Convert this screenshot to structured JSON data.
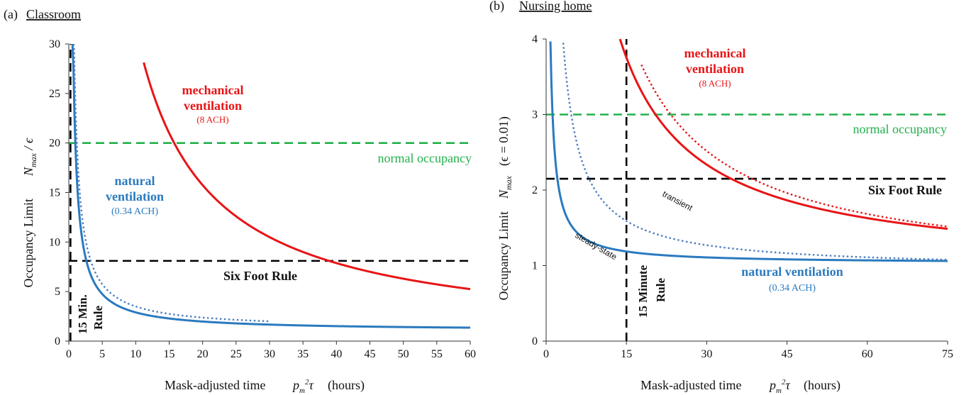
{
  "colors": {
    "mechanical": "#e81416",
    "natural": "#2a7abf",
    "natural_dotted": "#4f7fc0",
    "normal": "#22b14c",
    "rule": "#000000"
  },
  "chart_data": [
    {
      "type": "line",
      "panel_letter": "(a)",
      "title": "Classroom",
      "xlabel": "Mask-adjusted time",
      "xlabel_math": "p_m^2 τ",
      "xlabel_unit": "(hours)",
      "ylabel": "Occupancy Limit",
      "ylabel_math": "N_max / ϵ",
      "xlim": [
        0,
        60
      ],
      "ylim": [
        0,
        30
      ],
      "xticks": [
        "0",
        "5",
        "10",
        "15",
        "20",
        "25",
        "30",
        "35",
        "40",
        "45",
        "50",
        "55",
        "60"
      ],
      "yticks": [
        "0",
        "5",
        "10",
        "15",
        "20",
        "25",
        "30"
      ],
      "series": [
        {
          "key": "mech",
          "style": "solid",
          "color": "#e81416",
          "a": 0.0,
          "b": 315,
          "x_from": 11.2,
          "x_to": 60
        },
        {
          "key": "nat",
          "style": "solid",
          "color": "#2a7abf",
          "a": 1.05,
          "b": 18.5,
          "x_from": 0.55,
          "x_to": 60
        },
        {
          "key": "nat_dot",
          "style": "dotted",
          "color": "#4f7fc0",
          "a": 1.25,
          "b": 22.5,
          "x_from": 0.72,
          "x_to": 30
        }
      ],
      "hlines": [
        {
          "key": "normal",
          "y": 20,
          "color": "#22b14c",
          "x_from": 0,
          "x_to": 60
        },
        {
          "key": "six_foot",
          "y": 8.1,
          "color": "#000000",
          "x_from": 0,
          "x_to": 60
        }
      ],
      "vlines": [
        {
          "key": "fifteen",
          "x": 0.25,
          "color": "#000000"
        }
      ],
      "labels": {
        "mech_1": "mechanical",
        "mech_2": "ventilation",
        "mech_ach": "(8 ACH)",
        "nat_1": "natural",
        "nat_2": "ventilation",
        "nat_ach": "(0.34 ACH)",
        "normal": "normal occupancy",
        "six_foot": "Six Foot Rule",
        "fifteen_1": "15 Min.",
        "fifteen_2": "Rule"
      }
    },
    {
      "type": "line",
      "panel_letter": "(b)",
      "title": "Nursing home",
      "xlabel": "Mask-adjusted time",
      "xlabel_math": "p_m^2 τ",
      "xlabel_unit": "(hours)",
      "ylabel": "Occupancy Limit",
      "ylabel_math": "N_max",
      "ylabel_eps": "(ϵ = 0.01)",
      "xlim": [
        0,
        75
      ],
      "ylim": [
        0,
        4
      ],
      "xticks": [
        "0",
        "15",
        "30",
        "45",
        "60",
        "75"
      ],
      "yticks": [
        "0",
        "1",
        "2",
        "3",
        "4"
      ],
      "series": [
        {
          "key": "mech",
          "style": "solid",
          "color": "#e81416",
          "a": 0.92,
          "b": 42.5,
          "x_from": 13.8,
          "x_to": 75
        },
        {
          "key": "mech_dot",
          "style": "dotted",
          "color": "#e81416",
          "a": 0.85,
          "b": 50,
          "x_from": 17.8,
          "x_to": 75
        },
        {
          "key": "nat",
          "style": "solid",
          "color": "#2a7abf",
          "a": 1.03,
          "b": 2.35,
          "x_from": 0.8,
          "x_to": 75
        },
        {
          "key": "nat_dot",
          "style": "dotted",
          "color": "#4f7fc0",
          "a": 0.95,
          "b": 9.6,
          "x_from": 3.2,
          "x_to": 75
        }
      ],
      "hlines": [
        {
          "key": "normal",
          "y": 3.0,
          "color": "#22b14c",
          "x_from": 0,
          "x_to": 75
        },
        {
          "key": "six_foot",
          "y": 2.15,
          "color": "#000000",
          "x_from": 0,
          "x_to": 75
        }
      ],
      "vlines": [
        {
          "key": "fifteen",
          "x": 15,
          "color": "#000000"
        }
      ],
      "labels": {
        "mech_1": "mechanical",
        "mech_2": "ventilation",
        "mech_ach": "(8 ACH)",
        "nat_1": "natural ventilation",
        "nat_ach": "(0.34 ACH)",
        "normal": "normal occupancy",
        "six_foot": "Six Foot Rule",
        "fifteen_1": "15 Minute",
        "fifteen_2": "Rule",
        "transient": "transient",
        "steady": "steady-state"
      }
    }
  ]
}
